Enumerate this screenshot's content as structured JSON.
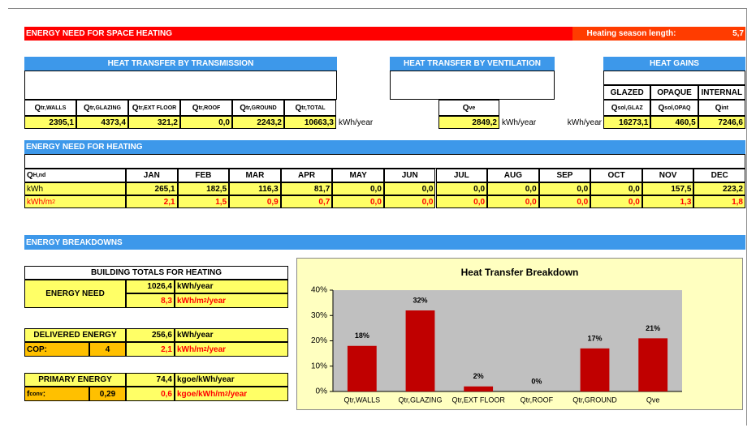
{
  "header": {
    "title": "ENERGY NEED FOR SPACE HEATING",
    "season_label": "Heating season length:",
    "season_value": "5,7"
  },
  "transmission": {
    "title": "HEAT TRANSFER BY TRANSMISSION",
    "columns": [
      {
        "label": {
          "main": "Q",
          "sub": "tr,WALLS"
        },
        "value": "2395,1"
      },
      {
        "label": {
          "main": "Q",
          "sub": "tr,GLAZING"
        },
        "value": "4373,4"
      },
      {
        "label": {
          "main": "Q",
          "sub": "tr,EXT FLOOR"
        },
        "value": "321,2"
      },
      {
        "label": {
          "main": "Q",
          "sub": "tr,ROOF"
        },
        "value": "0,0"
      },
      {
        "label": {
          "main": "Q",
          "sub": "tr,GROUND"
        },
        "value": "2243,2"
      },
      {
        "label": {
          "main": "Q",
          "sub": "tr,TOTAL"
        },
        "value": "10663,3"
      }
    ],
    "unit": "kWh/year"
  },
  "ventilation": {
    "title": "HEAT TRANSFER BY VENTILATION",
    "label": {
      "main": "Q",
      "sub": "ve"
    },
    "value": "2849,2",
    "unit": "kWh/year"
  },
  "gains": {
    "title": "HEAT GAINS",
    "unit": "kWh/year",
    "groups": [
      "GLAZED",
      "OPAQUE",
      "INTERNAL"
    ],
    "columns": [
      {
        "label": {
          "main": "Q",
          "sub": "sol,GLAZ"
        },
        "value": "16273,1"
      },
      {
        "label": {
          "main": "Q",
          "sub": "sol,OPAQ"
        },
        "value": "460,5"
      },
      {
        "label": {
          "main": "Q",
          "sub": "int"
        },
        "value": "7246,6"
      }
    ]
  },
  "monthly": {
    "title": "ENERGY NEED FOR HEATING",
    "label": {
      "main": "Q",
      "sub": "H,nd"
    },
    "months": [
      "JAN",
      "FEB",
      "MAR",
      "APR",
      "MAY",
      "JUN",
      "JUL",
      "AUG",
      "SEP",
      "OCT",
      "NOV",
      "DEC"
    ],
    "rows": [
      {
        "unit": "kWh",
        "values": [
          "265,1",
          "182,5",
          "116,3",
          "81,7",
          "0,0",
          "0,0",
          "0,0",
          "0,0",
          "0,0",
          "0,0",
          "157,5",
          "223,2"
        ]
      },
      {
        "unit": {
          "main": "kWh/m",
          "sup": "2"
        },
        "values": [
          "2,1",
          "1,5",
          "0,9",
          "0,7",
          "0,0",
          "0,0",
          "0,0",
          "0,0",
          "0,0",
          "0,0",
          "1,3",
          "1,8"
        ]
      }
    ]
  },
  "breakdowns": {
    "title": "ENERGY BREAKDOWNS",
    "totals_title": "BUILDING TOTALS FOR HEATING",
    "blocks": [
      {
        "label": "ENERGY NEED",
        "value1": "1026,4",
        "unit1": "kWh/year",
        "value2": "8,3",
        "unit2": {
          "main": "kWh/m",
          "sup": "2",
          "tail": "/year"
        }
      },
      {
        "label": "DELIVERED ENERGY",
        "sublabel": "COP:",
        "subvalue": "4",
        "value1": "256,6",
        "unit1": "kWh/year",
        "value2": "2,1",
        "unit2": {
          "main": "kWh/m",
          "sup": "2",
          "tail": "/year"
        }
      },
      {
        "label": "PRIMARY ENERGY",
        "sublabel": {
          "main": "f",
          "sub": "conv",
          "tail": ":"
        },
        "subvalue": "0,29",
        "value1": "74,4",
        "unit1": "kgoe/kWh/year",
        "value2": "0,6",
        "unit2": {
          "main": "kgoe/kWh/m",
          "sup": "2",
          "tail": "/year"
        }
      }
    ]
  },
  "chart_data": {
    "type": "bar",
    "title": "Heat Transfer Breakdown",
    "categories": [
      "Qtr,WALLS",
      "Qtr,GLAZING",
      "Qtr,EXT FLOOR",
      "Qtr,ROOF",
      "Qtr,GROUND",
      "Qve"
    ],
    "values": [
      18,
      32,
      2,
      0,
      17,
      21
    ],
    "value_labels": [
      "18%",
      "32%",
      "2%",
      "0%",
      "17%",
      "21%"
    ],
    "color": "#c00000",
    "ylim": [
      0,
      40
    ],
    "yticks": [
      {
        "value": 0,
        "label": "0%"
      },
      {
        "value": 10,
        "label": "10%"
      },
      {
        "value": 20,
        "label": "20%"
      },
      {
        "value": 30,
        "label": "30%"
      },
      {
        "value": 40,
        "label": "40%"
      }
    ]
  }
}
